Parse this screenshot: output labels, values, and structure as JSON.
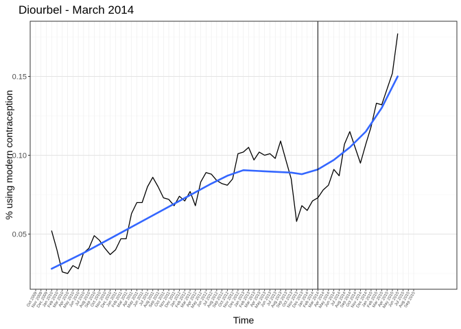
{
  "chart_data": {
    "type": "line",
    "title": "Diourbel - March 2014",
    "xlabel": "Time",
    "ylabel": "% using modern contraception",
    "ylim": [
      0.015,
      0.185
    ],
    "yticks": [
      0.05,
      0.1,
      0.15
    ],
    "ytick_labels": [
      "0.05",
      "0.10",
      "0.15"
    ],
    "x_start_month": "Oct 2009",
    "x_tick_labels": [
      "Oct 2009",
      "Nov 2009",
      "Dec 2009",
      "Jan 2010",
      "Feb 2010",
      "Mar 2010",
      "Apr 2010",
      "May 2010",
      "Jun 2010",
      "Jul 2010",
      "Aug 2010",
      "Sep 2010",
      "Oct 2010",
      "Nov 2010",
      "Dec 2010",
      "Jan 2011",
      "Feb 2011",
      "Mar 2011",
      "Apr 2011",
      "May 2011",
      "Jun 2011",
      "Jul 2011",
      "Aug 2011",
      "Sep 2011",
      "Oct 2011",
      "Nov 2011",
      "Dec 2011",
      "Jan 2012",
      "Feb 2012",
      "Mar 2012",
      "Apr 2012",
      "May 2012",
      "Jun 2012",
      "Jul 2012",
      "Aug 2012",
      "Sep 2012",
      "Oct 2012",
      "Nov 2012",
      "Dec 2012",
      "Jan 2013",
      "Feb 2013",
      "Mar 2013",
      "Apr 2013",
      "May 2013",
      "Jun 2013",
      "Jul 2013",
      "Aug 2013",
      "Sep 2013",
      "Oct 2013",
      "Nov 2013",
      "Dec 2013",
      "Jan 2014",
      "Feb 2014",
      "Mar 2014",
      "Apr 2014",
      "May 2014",
      "Jun 2014",
      "Jul 2014",
      "Aug 2014",
      "Sep 2014",
      "Oct 2014",
      "Nov 2014",
      "Dec 2014",
      "Jan 2015",
      "Feb 2015",
      "Mar 2015",
      "Apr 2015",
      "May 2015",
      "Jun 2015",
      "Jul 2015",
      "Aug 2015",
      "Sep 2015"
    ],
    "vline_month": "Mar 2014",
    "grid": true,
    "series": [
      {
        "color": "#000000",
        "x": [
          "Jan 2010",
          "Feb 2010",
          "Mar 2010",
          "Apr 2010",
          "May 2010",
          "Jun 2010",
          "Jul 2010",
          "Aug 2010",
          "Sep 2010",
          "Oct 2010",
          "Nov 2010",
          "Dec 2010",
          "Jan 2011",
          "Feb 2011",
          "Mar 2011",
          "Apr 2011",
          "May 2011",
          "Jun 2011",
          "Jul 2011",
          "Aug 2011",
          "Sep 2011",
          "Oct 2011",
          "Nov 2011",
          "Dec 2011",
          "Jan 2012",
          "Feb 2012",
          "Mar 2012",
          "Apr 2012",
          "May 2012",
          "Jun 2012",
          "Jul 2012",
          "Aug 2012",
          "Sep 2012",
          "Oct 2012",
          "Nov 2012",
          "Dec 2012",
          "Jan 2013",
          "Feb 2013",
          "Mar 2013",
          "Apr 2013",
          "May 2013",
          "Jun 2013",
          "Jul 2013",
          "Aug 2013",
          "Sep 2013",
          "Oct 2013",
          "Nov 2013",
          "Dec 2013",
          "Jan 2014",
          "Feb 2014",
          "Mar 2014",
          "Apr 2014",
          "May 2014",
          "Jun 2014",
          "Jul 2014",
          "Aug 2014",
          "Sep 2014",
          "Oct 2014",
          "Nov 2014",
          "Dec 2014",
          "Jan 2015",
          "Feb 2015",
          "Mar 2015",
          "Apr 2015",
          "May 2015",
          "Jun 2015"
        ],
        "values": [
          0.052,
          0.04,
          0.026,
          0.025,
          0.03,
          0.028,
          0.038,
          0.041,
          0.049,
          0.046,
          0.041,
          0.037,
          0.04,
          0.047,
          0.047,
          0.063,
          0.07,
          0.07,
          0.08,
          0.086,
          0.08,
          0.073,
          0.072,
          0.068,
          0.074,
          0.071,
          0.077,
          0.068,
          0.083,
          0.089,
          0.088,
          0.084,
          0.082,
          0.081,
          0.085,
          0.101,
          0.102,
          0.105,
          0.097,
          0.102,
          0.1,
          0.101,
          0.098,
          0.109,
          0.097,
          0.085,
          0.058,
          0.068,
          0.065,
          0.071,
          0.073,
          0.078,
          0.081,
          0.091,
          0.087,
          0.107,
          0.115,
          0.105,
          0.095,
          0.107,
          0.118,
          0.133,
          0.132,
          0.142,
          0.152,
          0.177
        ]
      },
      {
        "color": "#3366ff",
        "x": [
          "Jan 2010",
          "Jul 2010",
          "Jan 2011",
          "Jul 2011",
          "Jan 2012",
          "Jul 2012",
          "Oct 2012",
          "Jan 2013",
          "Apr 2013",
          "Jul 2013",
          "Oct 2013",
          "Dec 2013",
          "Mar 2014",
          "Jun 2014",
          "Sep 2014",
          "Dec 2014",
          "Mar 2015",
          "Jun 2015"
        ],
        "values": [
          0.028,
          0.038,
          0.049,
          0.06,
          0.071,
          0.082,
          0.087,
          0.0905,
          0.09,
          0.0895,
          0.089,
          0.088,
          0.091,
          0.097,
          0.105,
          0.115,
          0.13,
          0.15
        ]
      }
    ]
  }
}
